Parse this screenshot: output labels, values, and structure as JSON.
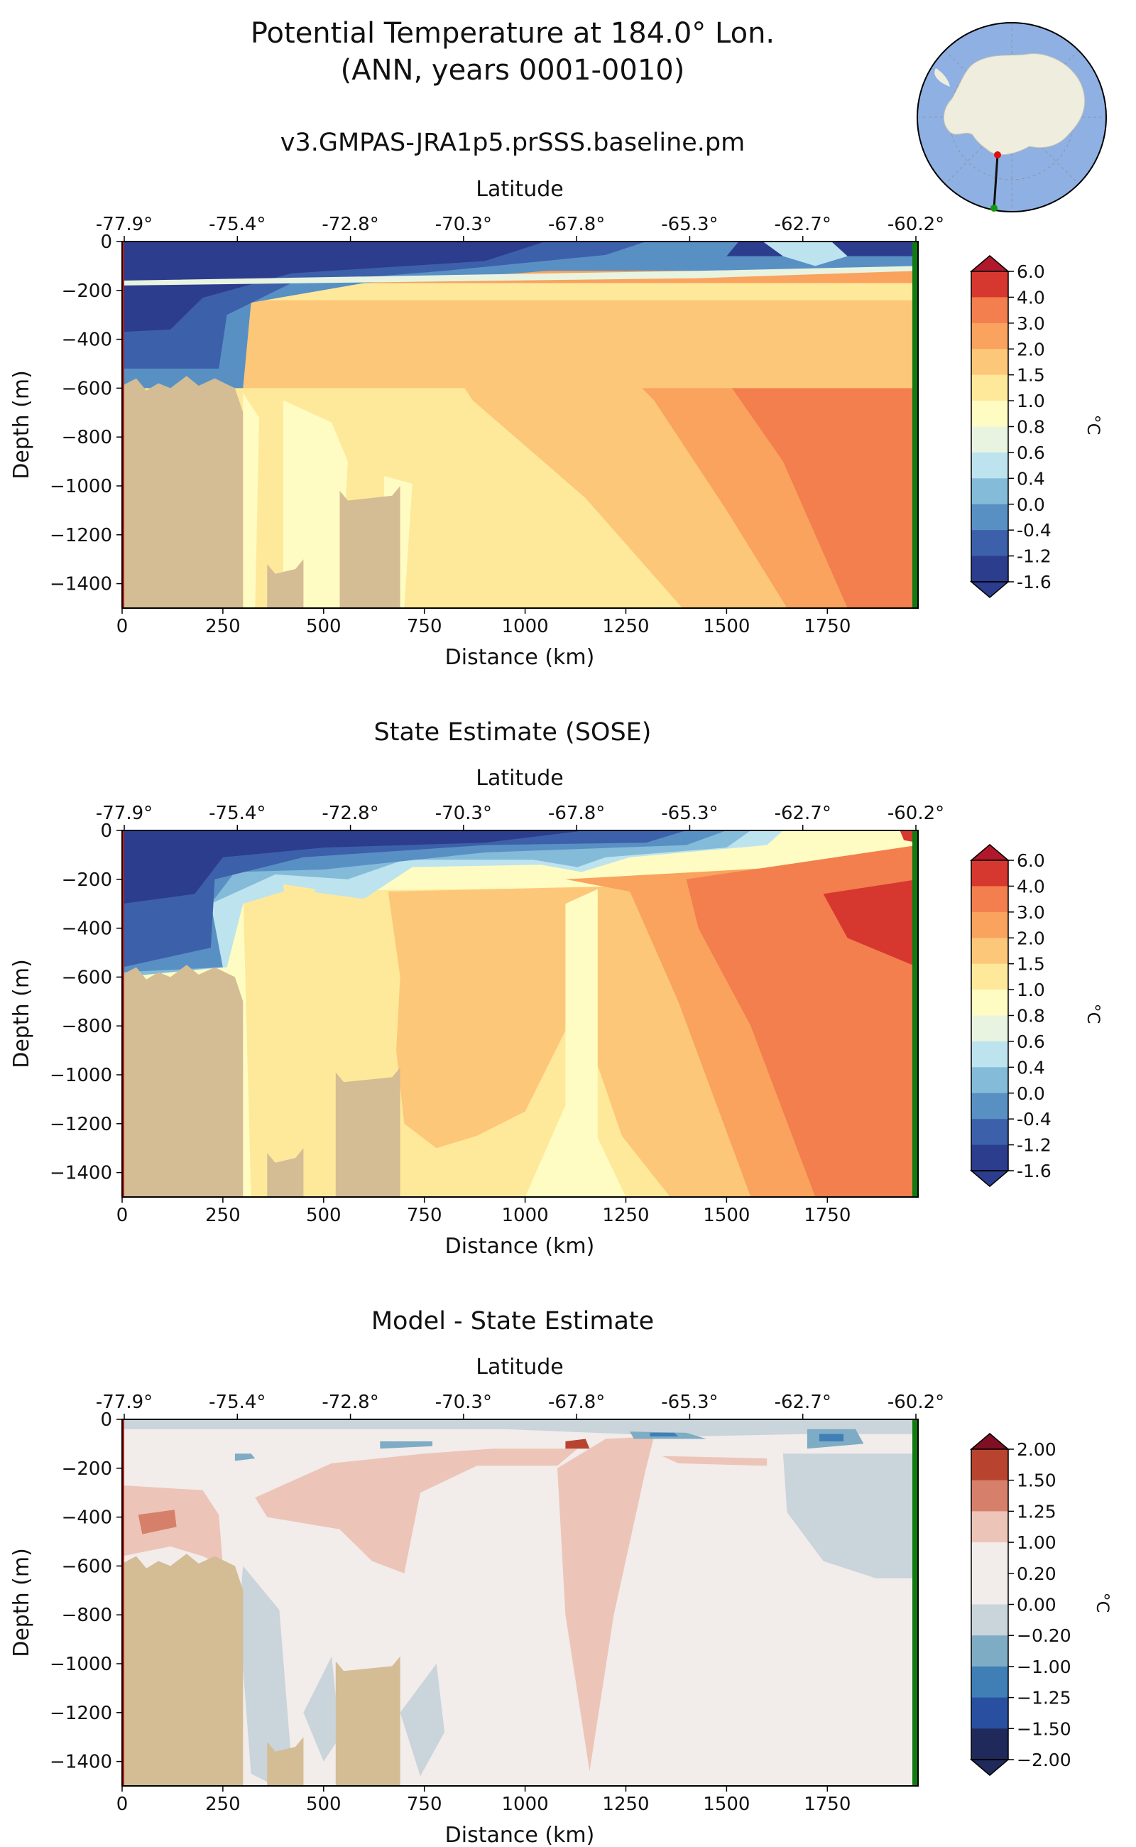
{
  "figure": {
    "title_line1": "Potential Temperature at 184.0° Lon.",
    "title_line2": "(ANN, years 0001-0010)"
  },
  "colors": {
    "land": "#d4bc94",
    "start_marker": "#cc1111",
    "end_marker": "#117a11"
  },
  "chart_data": [
    {
      "type": "heatmap",
      "title": "v3.GMPAS-JRA1p5.prSSS.baseline.pm",
      "xlabel": "Distance (km)",
      "ylabel": "Depth (m)",
      "top_xlabel": "Latitude",
      "xlim": [
        0,
        1975
      ],
      "ylim": [
        -1500,
        0
      ],
      "x_ticks": [
        0,
        250,
        500,
        750,
        1000,
        1250,
        1500,
        1750
      ],
      "y_ticks": [
        0,
        -200,
        -400,
        -600,
        -800,
        -1000,
        -1200,
        -1400
      ],
      "lat_ticks": [
        "-77.9°",
        "-75.4°",
        "-72.8°",
        "-70.3°",
        "-67.8°",
        "-65.3°",
        "-62.7°",
        "-60.2°"
      ],
      "colorbar": {
        "label": "°C",
        "levels": [
          "6.0",
          "4.0",
          "3.0",
          "2.0",
          "1.5",
          "1.0",
          "0.8",
          "0.6",
          "0.4",
          "0.0",
          "-0.4",
          "-1.2",
          "-1.6"
        ],
        "colors": [
          "#b2182b",
          "#d6372f",
          "#f27f4d",
          "#f9a35f",
          "#fdc77a",
          "#fee99b",
          "#fefcc2",
          "#e8f4e0",
          "#bde3ee",
          "#84bbd9",
          "#5990c4",
          "#3d60aa",
          "#2c3d8e"
        ],
        "extend": "both"
      },
      "land_top_depth": -590,
      "land_region_km": [
        0,
        300
      ],
      "ridges": [
        {
          "x0": 360,
          "x1": 450,
          "top": -1360
        },
        {
          "x0": 540,
          "x1": 690,
          "top": -1060
        }
      ],
      "bands": [
        {
          "bottom": -600,
          "color": "#fdc77a"
        },
        {
          "bottom": -240,
          "color": "#fee99b"
        },
        {
          "bottom": -170,
          "color": "#f9a35f"
        },
        {
          "bottom": -120,
          "color": "#5990c4"
        },
        {
          "bottom": -60,
          "color": "#2c3d8e"
        }
      ]
    },
    {
      "type": "heatmap",
      "title": "State Estimate (SOSE)",
      "xlabel": "Distance (km)",
      "ylabel": "Depth (m)",
      "top_xlabel": "Latitude",
      "xlim": [
        0,
        1975
      ],
      "ylim": [
        -1500,
        0
      ],
      "x_ticks": [
        0,
        250,
        500,
        750,
        1000,
        1250,
        1500,
        1750
      ],
      "y_ticks": [
        0,
        -200,
        -400,
        -600,
        -800,
        -1000,
        -1200,
        -1400
      ],
      "lat_ticks": [
        "-77.9°",
        "-75.4°",
        "-72.8°",
        "-70.3°",
        "-67.8°",
        "-65.3°",
        "-62.7°",
        "-60.2°"
      ],
      "colorbar": {
        "label": "°C",
        "levels": [
          "6.0",
          "4.0",
          "3.0",
          "2.0",
          "1.5",
          "1.0",
          "0.8",
          "0.6",
          "0.4",
          "0.0",
          "-0.4",
          "-1.2",
          "-1.6"
        ],
        "colors": [
          "#b2182b",
          "#d6372f",
          "#f27f4d",
          "#f9a35f",
          "#fdc77a",
          "#fee99b",
          "#fefcc2",
          "#e8f4e0",
          "#bde3ee",
          "#84bbd9",
          "#5990c4",
          "#3d60aa",
          "#2c3d8e"
        ],
        "extend": "both"
      },
      "land_top_depth": -590,
      "land_region_km": [
        0,
        300
      ],
      "ridges": [
        {
          "x0": 360,
          "x1": 450,
          "top": -1360
        },
        {
          "x0": 530,
          "x1": 690,
          "top": -1030
        }
      ]
    },
    {
      "type": "heatmap",
      "title": "Model - State Estimate",
      "xlabel": "Distance (km)",
      "ylabel": "Depth (m)",
      "top_xlabel": "Latitude",
      "xlim": [
        0,
        1975
      ],
      "ylim": [
        -1500,
        0
      ],
      "x_ticks": [
        0,
        250,
        500,
        750,
        1000,
        1250,
        1500,
        1750
      ],
      "y_ticks": [
        0,
        -200,
        -400,
        -600,
        -800,
        -1000,
        -1200,
        -1400
      ],
      "lat_ticks": [
        "-77.9°",
        "-75.4°",
        "-72.8°",
        "-70.3°",
        "-67.8°",
        "-65.3°",
        "-62.7°",
        "-60.2°"
      ],
      "colorbar": {
        "label": "°C",
        "levels": [
          "2.00",
          "1.50",
          "1.25",
          "1.00",
          "0.20",
          "0.00",
          "−0.20",
          "−1.00",
          "−1.25",
          "−1.50",
          "−2.00"
        ],
        "colors": [
          "#800f26",
          "#b8442f",
          "#d6806b",
          "#ecc5b8",
          "#f2ecea",
          "#f2ecea",
          "#c9d4db",
          "#7eacc4",
          "#3f7fb6",
          "#2950a0",
          "#1f2a5a"
        ],
        "extend": "both"
      },
      "land_top_depth": -590,
      "land_region_km": [
        0,
        300
      ],
      "ridges": [
        {
          "x0": 360,
          "x1": 450,
          "top": -1360
        },
        {
          "x0": 530,
          "x1": 690,
          "top": -1030
        }
      ]
    }
  ]
}
